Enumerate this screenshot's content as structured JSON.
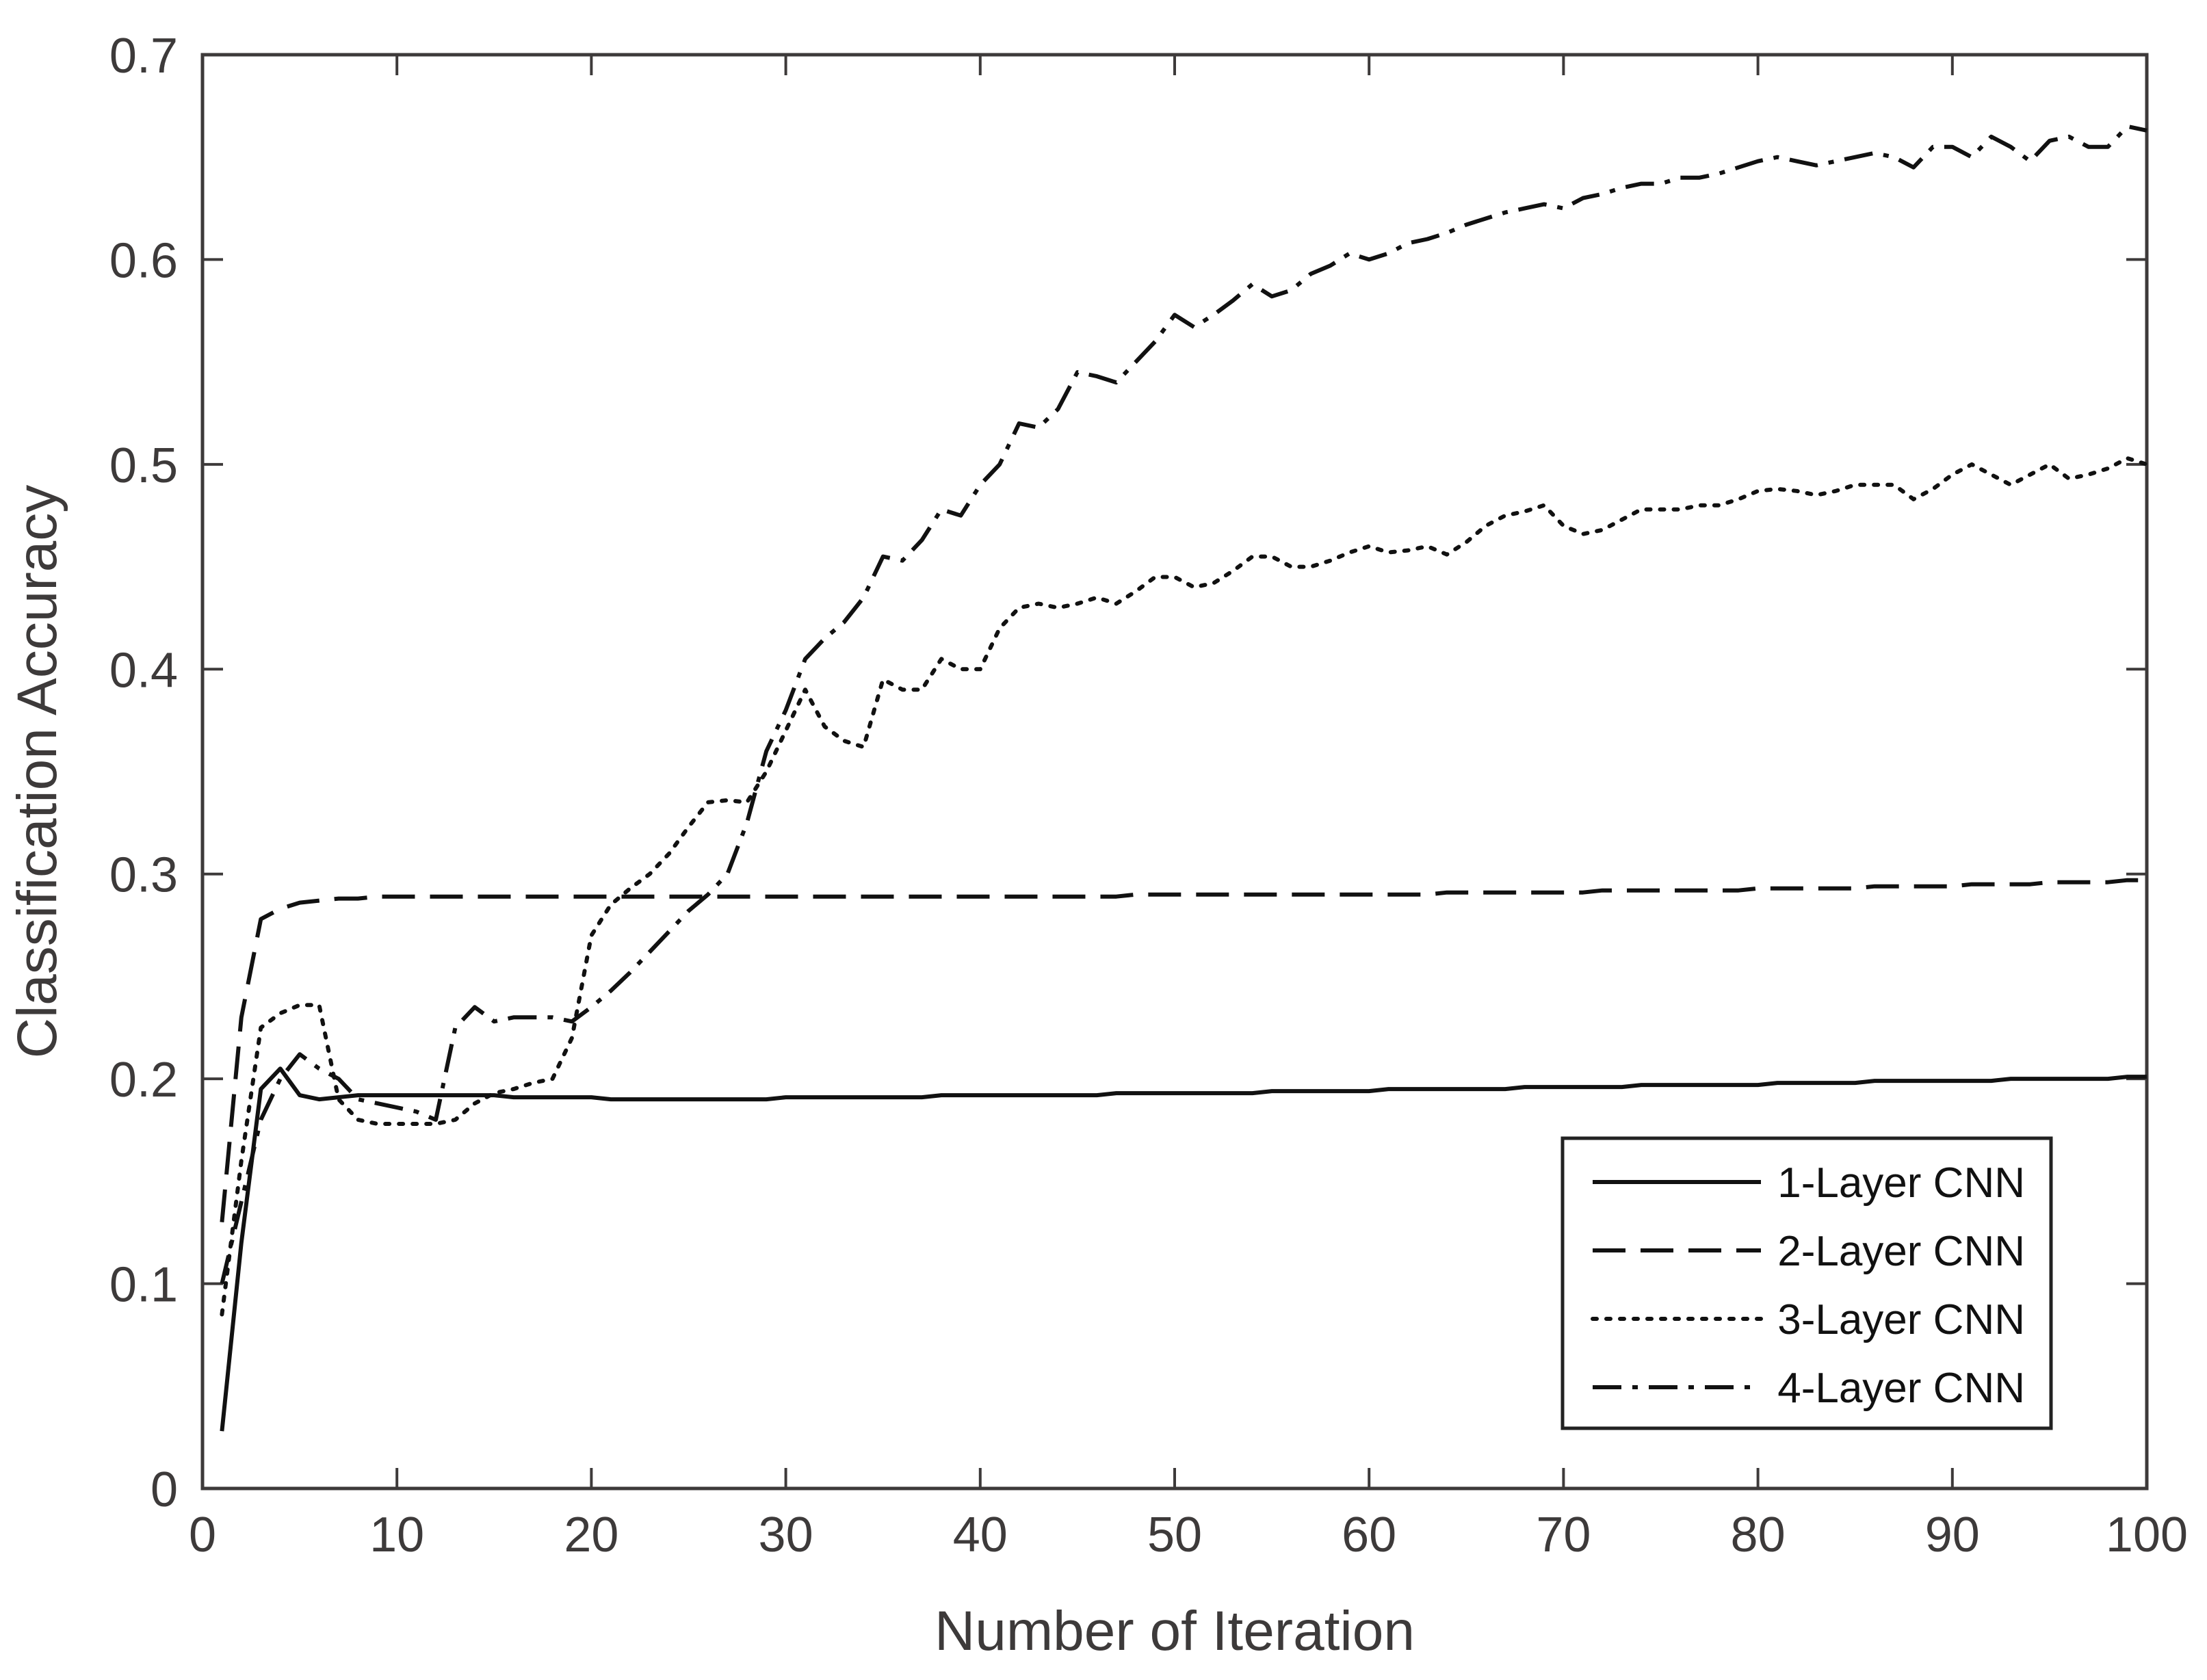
{
  "chart_data": {
    "type": "line",
    "title": "",
    "xlabel": "Number of Iteration",
    "ylabel": "Classification Accuracy",
    "xlim": [
      0,
      100
    ],
    "ylim": [
      0,
      0.7
    ],
    "xticks": [
      0,
      10,
      20,
      30,
      40,
      50,
      60,
      70,
      80,
      90,
      100
    ],
    "yticks": [
      0,
      0.1,
      0.2,
      0.3,
      0.4,
      0.5,
      0.6,
      0.7
    ],
    "grid": false,
    "legend_position": "bottom-right",
    "x": [
      1,
      2,
      3,
      4,
      5,
      6,
      7,
      8,
      9,
      10,
      11,
      12,
      13,
      14,
      15,
      16,
      17,
      18,
      19,
      20,
      21,
      22,
      23,
      24,
      25,
      26,
      27,
      28,
      29,
      30,
      31,
      32,
      33,
      34,
      35,
      36,
      37,
      38,
      39,
      40,
      41,
      42,
      43,
      44,
      45,
      46,
      47,
      48,
      49,
      50,
      51,
      52,
      53,
      54,
      55,
      56,
      57,
      58,
      59,
      60,
      61,
      62,
      63,
      64,
      65,
      66,
      67,
      68,
      69,
      70,
      71,
      72,
      73,
      74,
      75,
      76,
      77,
      78,
      79,
      80,
      81,
      82,
      83,
      84,
      85,
      86,
      87,
      88,
      89,
      90,
      91,
      92,
      93,
      94,
      95,
      96,
      97,
      98,
      99,
      100
    ],
    "series": [
      {
        "name": "1-Layer CNN",
        "dash": "solid",
        "values": [
          0.028,
          0.12,
          0.195,
          0.205,
          0.192,
          0.19,
          0.191,
          0.192,
          0.192,
          0.192,
          0.192,
          0.192,
          0.192,
          0.192,
          0.192,
          0.191,
          0.191,
          0.191,
          0.191,
          0.191,
          0.19,
          0.19,
          0.19,
          0.19,
          0.19,
          0.19,
          0.19,
          0.19,
          0.19,
          0.191,
          0.191,
          0.191,
          0.191,
          0.191,
          0.191,
          0.191,
          0.191,
          0.192,
          0.192,
          0.192,
          0.192,
          0.192,
          0.192,
          0.192,
          0.192,
          0.192,
          0.193,
          0.193,
          0.193,
          0.193,
          0.193,
          0.193,
          0.193,
          0.193,
          0.194,
          0.194,
          0.194,
          0.194,
          0.194,
          0.194,
          0.195,
          0.195,
          0.195,
          0.195,
          0.195,
          0.195,
          0.195,
          0.196,
          0.196,
          0.196,
          0.196,
          0.196,
          0.196,
          0.197,
          0.197,
          0.197,
          0.197,
          0.197,
          0.197,
          0.197,
          0.198,
          0.198,
          0.198,
          0.198,
          0.198,
          0.199,
          0.199,
          0.199,
          0.199,
          0.199,
          0.199,
          0.199,
          0.2,
          0.2,
          0.2,
          0.2,
          0.2,
          0.2,
          0.201,
          0.201
        ]
      },
      {
        "name": "2-Layer CNN",
        "dash": "dashed",
        "values": [
          0.13,
          0.23,
          0.278,
          0.283,
          0.286,
          0.287,
          0.288,
          0.288,
          0.289,
          0.289,
          0.289,
          0.289,
          0.289,
          0.289,
          0.289,
          0.289,
          0.289,
          0.289,
          0.289,
          0.289,
          0.289,
          0.289,
          0.289,
          0.289,
          0.289,
          0.289,
          0.289,
          0.289,
          0.289,
          0.289,
          0.289,
          0.289,
          0.289,
          0.289,
          0.289,
          0.289,
          0.289,
          0.289,
          0.289,
          0.289,
          0.289,
          0.289,
          0.289,
          0.289,
          0.289,
          0.289,
          0.289,
          0.29,
          0.29,
          0.29,
          0.29,
          0.29,
          0.29,
          0.29,
          0.29,
          0.29,
          0.29,
          0.29,
          0.29,
          0.29,
          0.29,
          0.29,
          0.29,
          0.291,
          0.291,
          0.291,
          0.291,
          0.291,
          0.291,
          0.291,
          0.291,
          0.292,
          0.292,
          0.292,
          0.292,
          0.292,
          0.292,
          0.292,
          0.292,
          0.293,
          0.293,
          0.293,
          0.293,
          0.293,
          0.293,
          0.294,
          0.294,
          0.294,
          0.294,
          0.294,
          0.295,
          0.295,
          0.295,
          0.295,
          0.296,
          0.296,
          0.296,
          0.296,
          0.297,
          0.297
        ]
      },
      {
        "name": "3-Layer CNN",
        "dash": "dotted",
        "values": [
          0.085,
          0.16,
          0.225,
          0.232,
          0.236,
          0.236,
          0.19,
          0.18,
          0.178,
          0.178,
          0.178,
          0.178,
          0.18,
          0.188,
          0.193,
          0.195,
          0.198,
          0.2,
          0.22,
          0.27,
          0.285,
          0.293,
          0.3,
          0.31,
          0.323,
          0.335,
          0.336,
          0.335,
          0.35,
          0.37,
          0.39,
          0.372,
          0.365,
          0.362,
          0.395,
          0.39,
          0.39,
          0.405,
          0.4,
          0.4,
          0.42,
          0.43,
          0.432,
          0.43,
          0.432,
          0.435,
          0.432,
          0.438,
          0.445,
          0.445,
          0.44,
          0.442,
          0.448,
          0.455,
          0.455,
          0.45,
          0.45,
          0.453,
          0.457,
          0.46,
          0.457,
          0.458,
          0.46,
          0.456,
          0.462,
          0.47,
          0.475,
          0.477,
          0.48,
          0.47,
          0.466,
          0.468,
          0.473,
          0.478,
          0.478,
          0.478,
          0.48,
          0.48,
          0.483,
          0.487,
          0.488,
          0.487,
          0.485,
          0.487,
          0.49,
          0.49,
          0.49,
          0.483,
          0.488,
          0.495,
          0.5,
          0.495,
          0.49,
          0.495,
          0.5,
          0.493,
          0.495,
          0.498,
          0.503,
          0.5
        ]
      },
      {
        "name": "4-Layer CNN",
        "dash": "dashdot",
        "values": [
          0.1,
          0.14,
          0.18,
          0.2,
          0.212,
          0.205,
          0.2,
          0.19,
          0.188,
          0.186,
          0.184,
          0.18,
          0.225,
          0.235,
          0.228,
          0.23,
          0.23,
          0.23,
          0.228,
          0.235,
          0.243,
          0.252,
          0.262,
          0.272,
          0.282,
          0.29,
          0.3,
          0.325,
          0.36,
          0.38,
          0.405,
          0.415,
          0.423,
          0.435,
          0.455,
          0.453,
          0.463,
          0.478,
          0.475,
          0.49,
          0.5,
          0.52,
          0.518,
          0.527,
          0.545,
          0.543,
          0.54,
          0.55,
          0.56,
          0.573,
          0.567,
          0.573,
          0.58,
          0.588,
          0.582,
          0.585,
          0.593,
          0.597,
          0.603,
          0.6,
          0.603,
          0.608,
          0.61,
          0.613,
          0.617,
          0.62,
          0.623,
          0.625,
          0.627,
          0.625,
          0.63,
          0.632,
          0.635,
          0.637,
          0.637,
          0.64,
          0.64,
          0.642,
          0.645,
          0.648,
          0.65,
          0.648,
          0.646,
          0.648,
          0.65,
          0.652,
          0.65,
          0.645,
          0.655,
          0.655,
          0.65,
          0.66,
          0.655,
          0.648,
          0.658,
          0.66,
          0.655,
          0.655,
          0.665,
          0.663
        ]
      }
    ]
  }
}
